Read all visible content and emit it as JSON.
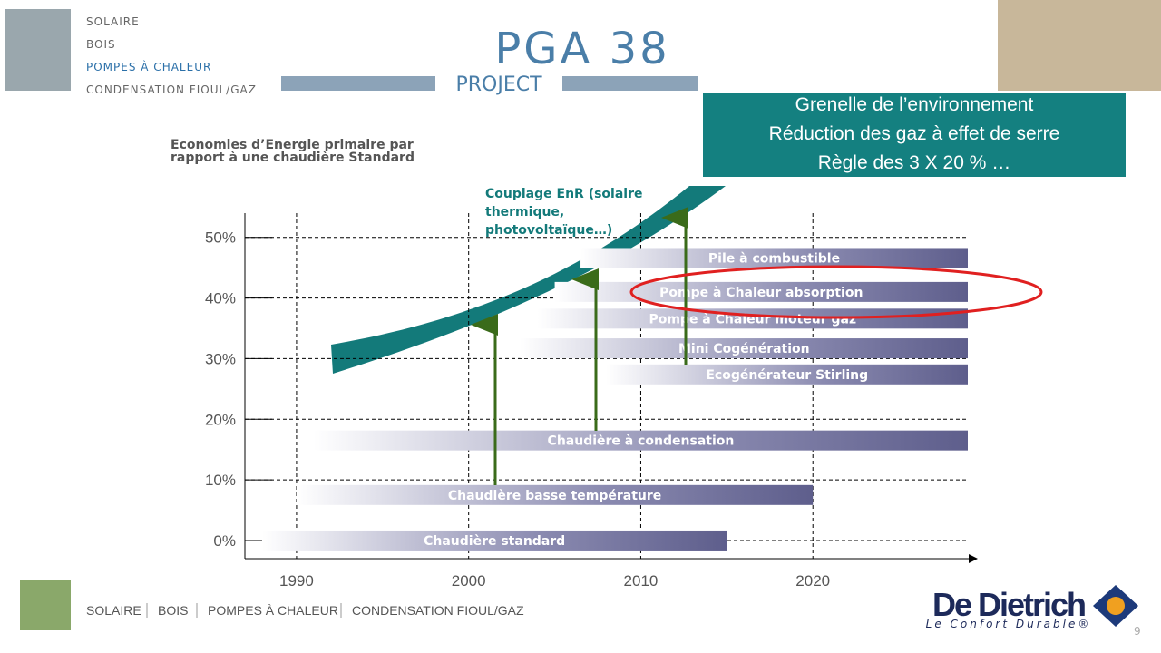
{
  "header": {
    "menu": [
      "SOLAIRE",
      "BOIS",
      "POMPES À CHALEUR",
      "CONDENSATION FIOUL/GAZ"
    ],
    "logo_title": "PGA 38",
    "logo_subtitle": "PROJECT"
  },
  "banner": [
    "Grenelle de l’environnement",
    "Réduction des gaz à effet de serre",
    "Règle des  3 X 20 % …"
  ],
  "chart_data": {
    "type": "timeline-bar",
    "y_label": "Économies d’Énergie primaire par rapport à une  chaudière Standard",
    "annotation": "Couplage EnR (solaire thermique, photovoltaïque…)",
    "xlim": [
      1987,
      2029
    ],
    "xticks": [
      1990,
      2000,
      2010,
      2020
    ],
    "ylim": [
      -3,
      54
    ],
    "yticks": [
      {
        "value": 0,
        "label": "0%"
      },
      {
        "value": 10,
        "label": "10%"
      },
      {
        "value": 20,
        "label": "20%"
      },
      {
        "value": 30,
        "label": "30%"
      },
      {
        "value": 40,
        "label": "40%"
      },
      {
        "value": 50,
        "label": "50%"
      }
    ],
    "grid": true,
    "color": "#5e5e8c",
    "items": [
      {
        "label": "Chaudière standard",
        "level": 0,
        "start": 1988,
        "end": 2015
      },
      {
        "label": "Chaudière basse température",
        "level": 7.5,
        "start": 1990,
        "end": 2020
      },
      {
        "label": "Chaudière à condensation",
        "level": 16.5,
        "start": 1991,
        "end": 2029
      },
      {
        "label": "Ecogénérateur Stirling",
        "level": 27.4,
        "start": 2008,
        "end": 2029
      },
      {
        "label": "Mini Cogénération",
        "level": 31.7,
        "start": 2003,
        "end": 2029
      },
      {
        "label": "Pompe à Chaleur moteur gaz",
        "level": 36.6,
        "start": 2004,
        "end": 2029
      },
      {
        "label": "Pompe à Chaleur absorption",
        "level": 41,
        "start": 2005,
        "end": 2029
      },
      {
        "label": "Pile à combustible",
        "level": 46.6,
        "start": 2006.5,
        "end": 2029
      }
    ]
  },
  "footer": {
    "menu": [
      "SOLAIRE",
      "BOIS",
      "POMPES À CHALEUR",
      "CONDENSATION FIOUL/GAZ"
    ],
    "brand": "De Dietrich",
    "tagline": "Le Confort Durable®",
    "page": "9"
  }
}
